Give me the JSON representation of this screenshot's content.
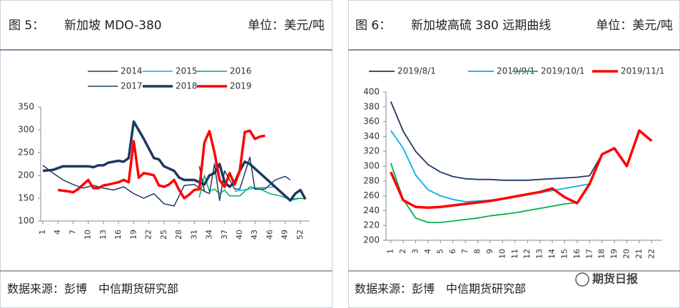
{
  "header": [
    {
      "fig": "图 5：",
      "title": "新加坡 MDO-380",
      "unit": "单位：美元/吨"
    },
    {
      "fig": "图 6：",
      "title": "新加坡高硫 380 远期曲线",
      "unit": "单位：美元/吨"
    }
  ],
  "footer": [
    {
      "source": "数据来源：彭博　中信期货研究部"
    },
    {
      "source": "数据来源：彭博　中信期货研究部"
    }
  ],
  "watermark": "期货日报",
  "chart_data": [
    {
      "type": "line",
      "xlim": [
        1,
        53
      ],
      "xticks": [
        1,
        4,
        7,
        10,
        13,
        16,
        19,
        22,
        25,
        28,
        31,
        34,
        37,
        40,
        43,
        46,
        49,
        52
      ],
      "ylim": [
        100,
        350
      ],
      "yticks": [
        100,
        150,
        200,
        250,
        300,
        350
      ],
      "series": [
        {
          "name": "2014",
          "color": "#1f3864",
          "line_width": 1.5,
          "x": [
            1,
            3,
            5,
            7,
            9,
            11,
            13,
            15,
            17,
            19,
            21,
            23,
            25,
            27,
            29,
            31,
            33
          ],
          "values": [
            222,
            205,
            190,
            180,
            172,
            178,
            172,
            168,
            175,
            160,
            150,
            160,
            138,
            133,
            178,
            180,
            165
          ]
        },
        {
          "name": "2015",
          "color": "#00b0f0",
          "line_width": 1.5,
          "x": [
            39,
            43,
            47,
            50,
            52
          ],
          "values": [
            165,
            172,
            175,
            145,
            150
          ]
        },
        {
          "name": "2016",
          "color": "#00b050",
          "line_width": 1.5,
          "x": [
            32,
            33,
            34,
            35,
            36,
            37,
            38,
            40,
            42,
            44,
            46,
            48,
            50,
            52,
            53
          ],
          "values": [
            152,
            200,
            165,
            170,
            160,
            168,
            155,
            155,
            175,
            170,
            160,
            155,
            148,
            150,
            148
          ]
        },
        {
          "name": "2017",
          "color": "#203864",
          "line_width": 1.5,
          "x": [
            32,
            33,
            34,
            35,
            36,
            37,
            39,
            40,
            42,
            43,
            45,
            47,
            49,
            50
          ],
          "values": [
            220,
            165,
            160,
            225,
            145,
            210,
            170,
            170,
            240,
            170,
            170,
            190,
            198,
            190
          ]
        },
        {
          "name": "2018",
          "color": "#1f3864",
          "line_width": 3.5,
          "x": [
            1,
            3,
            5,
            10,
            11,
            12,
            13,
            14,
            16,
            17,
            18,
            19,
            21,
            23,
            24,
            25,
            27,
            28,
            29,
            31,
            32,
            33,
            34,
            35,
            36,
            37,
            38,
            39,
            40,
            41,
            42,
            43,
            45,
            47,
            49,
            50,
            51,
            52,
            53
          ],
          "values": [
            210,
            212,
            220,
            220,
            218,
            222,
            222,
            228,
            232,
            230,
            238,
            318,
            280,
            238,
            235,
            220,
            210,
            195,
            190,
            190,
            185,
            180,
            200,
            205,
            225,
            185,
            175,
            185,
            210,
            230,
            225,
            215,
            195,
            175,
            155,
            145,
            160,
            168,
            148
          ]
        },
        {
          "name": "2019",
          "color": "#ff0000",
          "line_width": 3.5,
          "x": [
            4,
            6,
            7,
            8,
            9,
            10,
            11,
            12,
            13,
            14,
            16,
            17,
            18,
            19,
            20,
            21,
            22,
            23,
            24,
            25,
            26,
            27,
            28,
            29,
            30,
            31,
            32,
            33,
            34,
            35,
            36,
            37,
            38,
            39,
            40,
            41,
            42,
            43,
            44,
            45
          ],
          "values": [
            168,
            165,
            163,
            170,
            180,
            190,
            172,
            172,
            178,
            180,
            185,
            190,
            185,
            275,
            195,
            205,
            203,
            200,
            178,
            175,
            180,
            190,
            168,
            150,
            158,
            168,
            170,
            272,
            297,
            250,
            190,
            175,
            205,
            180,
            210,
            295,
            298,
            280,
            285,
            287
          ]
        }
      ]
    },
    {
      "type": "line",
      "xlim": [
        0.5,
        22.5
      ],
      "xticks": [
        1,
        2,
        3,
        4,
        5,
        6,
        7,
        8,
        9,
        10,
        11,
        12,
        13,
        14,
        15,
        16,
        17,
        18,
        19,
        20,
        21,
        22
      ],
      "ylim": [
        200,
        400
      ],
      "yticks": [
        200,
        220,
        240,
        260,
        280,
        300,
        320,
        340,
        360,
        380,
        400
      ],
      "series": [
        {
          "name": "2019/8/1",
          "color": "#1f3864",
          "line_width": 1.8,
          "x": [
            1,
            2,
            3,
            4,
            5,
            6,
            7,
            8,
            9,
            10,
            11,
            12,
            13,
            14,
            15,
            16,
            17,
            18
          ],
          "values": [
            387,
            347,
            320,
            302,
            292,
            286,
            283,
            282,
            282,
            281,
            281,
            281,
            282,
            283,
            284,
            285,
            287,
            316
          ]
        },
        {
          "name": "2019/9/1",
          "color": "#00b0f0",
          "line_width": 1.8,
          "x": [
            1,
            2,
            3,
            4,
            5,
            6,
            7,
            8,
            9,
            10,
            11,
            12,
            13,
            14,
            15,
            16,
            17
          ],
          "values": [
            348,
            324,
            288,
            268,
            260,
            255,
            252,
            253,
            254,
            256,
            259,
            262,
            264,
            267,
            270,
            273,
            276
          ]
        },
        {
          "name": "2019/10/1",
          "color": "#00b050",
          "line_width": 1.8,
          "x": [
            1,
            2,
            3,
            4,
            5,
            6,
            7,
            8,
            9,
            10,
            11,
            12,
            13,
            14,
            15,
            16
          ],
          "values": [
            304,
            255,
            230,
            224,
            224,
            226,
            228,
            230,
            233,
            235,
            237,
            240,
            243,
            246,
            249,
            251
          ]
        },
        {
          "name": "2019/11/1",
          "color": "#ff0000",
          "line_width": 3.5,
          "x": [
            1,
            2,
            3,
            4,
            5,
            6,
            7,
            8,
            9,
            10,
            11,
            12,
            13,
            14,
            15,
            16,
            17,
            18,
            19,
            20,
            21,
            22
          ],
          "values": [
            292,
            254,
            245,
            244,
            245,
            247,
            249,
            251,
            253,
            256,
            259,
            262,
            265,
            270,
            258,
            250,
            276,
            316,
            324,
            300,
            348,
            334
          ]
        }
      ]
    }
  ]
}
